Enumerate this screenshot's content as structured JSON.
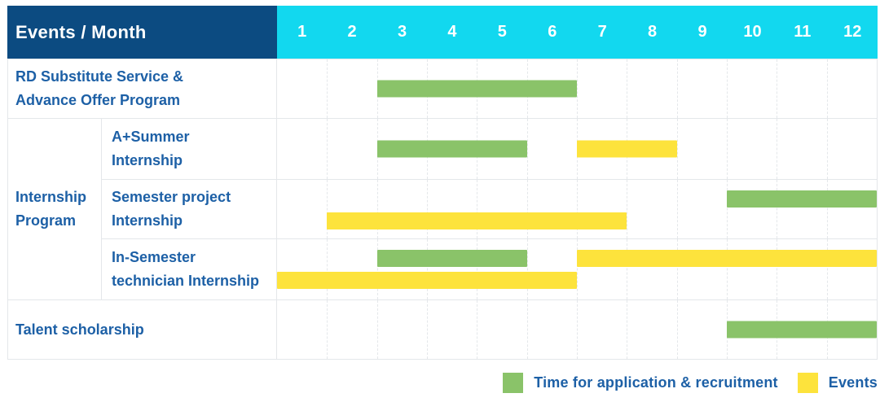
{
  "header": {
    "title": "Events / Month"
  },
  "months": [
    "1",
    "2",
    "3",
    "4",
    "5",
    "6",
    "7",
    "8",
    "9",
    "10",
    "11",
    "12"
  ],
  "colors": {
    "header_navy": "#0c4b81",
    "header_cyan": "#12d8ef",
    "bar_green": "#8ac369",
    "bar_yellow": "#fde33c",
    "text_blue": "#1d60a6",
    "grid_line": "#e4e7ea"
  },
  "legend": [
    {
      "swatch": "green",
      "label": "Time for application & recruitment"
    },
    {
      "swatch": "yellow",
      "label": "Events"
    }
  ],
  "chart_data": {
    "type": "gantt",
    "title": "Events / Month",
    "x_axis": {
      "unit": "month",
      "ticks": [
        1,
        2,
        3,
        4,
        5,
        6,
        7,
        8,
        9,
        10,
        11,
        12
      ],
      "range": [
        1,
        12
      ]
    },
    "grid": "dashed-vertical-month-lines",
    "legend_position": "bottom-right",
    "bar_types": {
      "green": "Time for application & recruitment",
      "yellow": "Events"
    },
    "group_label_lines": [
      "Internship",
      "Program"
    ],
    "rows": [
      {
        "group": "",
        "label_lines": [
          "RD Substitute Service &",
          "Advance Offer Program"
        ],
        "bars": [
          {
            "type": "green",
            "start": 3,
            "end": 6,
            "lane": "middle"
          }
        ]
      },
      {
        "group": "Internship Program",
        "label_lines": [
          "A+Summer",
          "Internship"
        ],
        "bars": [
          {
            "type": "green",
            "start": 3,
            "end": 5,
            "lane": "middle"
          },
          {
            "type": "yellow",
            "start": 7,
            "end": 8,
            "lane": "middle"
          }
        ]
      },
      {
        "group": "Internship Program",
        "label_lines": [
          "Semester project",
          "Internship"
        ],
        "bars": [
          {
            "type": "green",
            "start": 10,
            "end": 12,
            "lane": "top"
          },
          {
            "type": "yellow",
            "start": 2,
            "end": 7,
            "lane": "bottom"
          }
        ]
      },
      {
        "group": "Internship Program",
        "label_lines": [
          "In-Semester",
          "technician Internship"
        ],
        "bars": [
          {
            "type": "green",
            "start": 3,
            "end": 5,
            "lane": "top"
          },
          {
            "type": "yellow",
            "start": 7,
            "end": 12,
            "lane": "top"
          },
          {
            "type": "yellow",
            "start": 1,
            "end": 6,
            "lane": "bottom"
          }
        ]
      },
      {
        "group": "",
        "label_lines": [
          "Talent scholarship"
        ],
        "bars": [
          {
            "type": "green",
            "start": 10,
            "end": 12,
            "lane": "middle"
          }
        ]
      }
    ]
  }
}
